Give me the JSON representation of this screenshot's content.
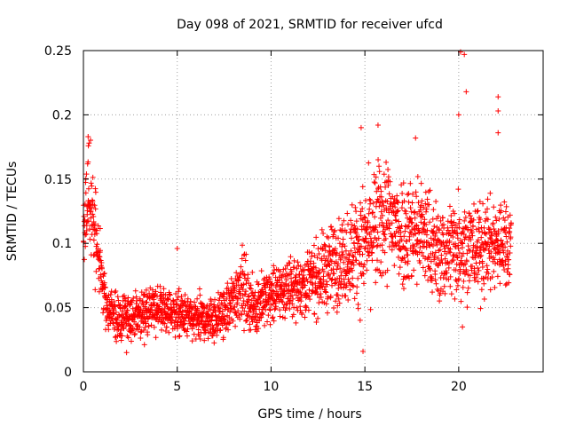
{
  "chart_data": {
    "type": "scatter",
    "title": "Day 098 of 2021, SRMTID for receiver ufcd",
    "xlabel": "GPS time / hours",
    "ylabel": "SRMTID / TECUs",
    "xlim": [
      0,
      24.5
    ],
    "ylim": [
      0,
      0.25
    ],
    "xticks": [
      0,
      5,
      10,
      15,
      20
    ],
    "xtick_labels": [
      "0",
      "5",
      "10",
      "15",
      "20"
    ],
    "yticks": [
      0,
      0.05,
      0.1,
      0.15,
      0.2,
      0.25
    ],
    "ytick_labels": [
      "0",
      "0.05",
      "0.1",
      "0.15",
      "0.2",
      "0.25"
    ],
    "grid": true,
    "marker": "+",
    "color": "#ff0000",
    "series": [
      {
        "name": "SRMTID",
        "trend_description_points": {
          "x": [
            0.0,
            0.2,
            0.5,
            0.8,
            1.2,
            2.0,
            3.0,
            4.0,
            5.0,
            6.0,
            7.0,
            7.8,
            8.4,
            9.0,
            10.0,
            11.0,
            12.0,
            13.0,
            14.0,
            15.0,
            16.0,
            17.0,
            18.0,
            19.0,
            20.0,
            21.0,
            22.0,
            22.8
          ],
          "y": [
            0.1,
            0.14,
            0.12,
            0.09,
            0.05,
            0.04,
            0.045,
            0.05,
            0.045,
            0.04,
            0.042,
            0.05,
            0.07,
            0.05,
            0.06,
            0.065,
            0.07,
            0.08,
            0.09,
            0.1,
            0.12,
            0.11,
            0.11,
            0.09,
            0.1,
            0.095,
            0.1,
            0.1
          ]
        },
        "spread": [
          0.02,
          0.03,
          0.025,
          0.02,
          0.015,
          0.013,
          0.012,
          0.013,
          0.012,
          0.012,
          0.012,
          0.015,
          0.02,
          0.015,
          0.015,
          0.015,
          0.018,
          0.022,
          0.025,
          0.03,
          0.035,
          0.03,
          0.03,
          0.025,
          0.03,
          0.025,
          0.025,
          0.025
        ],
        "x_range": [
          0.0,
          22.8
        ],
        "n_points": 2400,
        "outliers": [
          {
            "x": 0.25,
            "y": 0.183
          },
          {
            "x": 0.3,
            "y": 0.178
          },
          {
            "x": 14.8,
            "y": 0.19
          },
          {
            "x": 15.7,
            "y": 0.192
          },
          {
            "x": 17.7,
            "y": 0.182
          },
          {
            "x": 20.1,
            "y": 0.249
          },
          {
            "x": 20.3,
            "y": 0.247
          },
          {
            "x": 20.4,
            "y": 0.218
          },
          {
            "x": 20.0,
            "y": 0.2
          },
          {
            "x": 22.1,
            "y": 0.214
          },
          {
            "x": 22.1,
            "y": 0.203
          },
          {
            "x": 22.1,
            "y": 0.186
          },
          {
            "x": 20.2,
            "y": 0.035
          },
          {
            "x": 14.9,
            "y": 0.016
          },
          {
            "x": 2.3,
            "y": 0.015
          },
          {
            "x": 5.0,
            "y": 0.096
          }
        ]
      }
    ]
  }
}
